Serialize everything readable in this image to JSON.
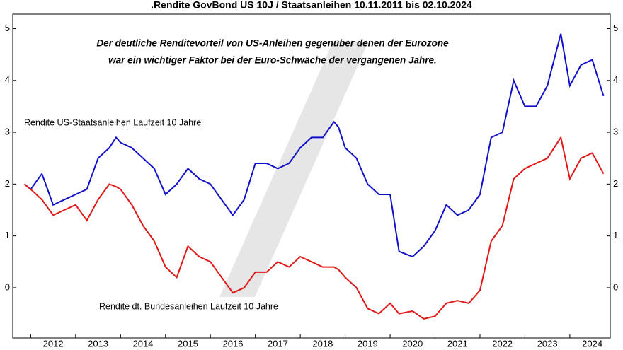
{
  "chart_data": {
    "type": "line",
    "title": ".Rendite GovBond US 10J / Staatsanleihen 10.11.2011 bis 02.10.2024",
    "annotations": [
      "Der deutliche Renditevorteil von US-Anleihen gegenüber denen der Eurozone",
      "war ein wichtiger Faktor bei der Euro-Schwäche der vergangenen Jahre."
    ],
    "x": [
      2011.86,
      2012,
      2012.25,
      2012.5,
      2012.75,
      2013,
      2013.25,
      2013.5,
      2013.75,
      2013.9,
      2014,
      2014.25,
      2014.5,
      2014.75,
      2015,
      2015.25,
      2015.5,
      2015.75,
      2016,
      2016.5,
      2016.75,
      2017,
      2017.25,
      2017.5,
      2017.75,
      2018,
      2018.25,
      2018.5,
      2018.75,
      2018.85,
      2019,
      2019.25,
      2019.5,
      2019.75,
      2020,
      2020.2,
      2020.5,
      2020.75,
      2021,
      2021.25,
      2021.5,
      2021.75,
      2022,
      2022.25,
      2022.5,
      2022.75,
      2023,
      2023.25,
      2023.5,
      2023.8,
      2024,
      2024.25,
      2024.5,
      2024.75
    ],
    "series": [
      {
        "name": "Rendite US-Staatsanleihen Laufzeit 10 Jahre",
        "color": "#1010c8",
        "values": [
          2.0,
          1.9,
          2.2,
          1.6,
          1.7,
          1.8,
          1.9,
          2.5,
          2.7,
          2.9,
          2.8,
          2.7,
          2.5,
          2.3,
          1.8,
          2.0,
          2.3,
          2.1,
          2.0,
          1.4,
          1.7,
          2.4,
          2.4,
          2.3,
          2.4,
          2.7,
          2.9,
          2.9,
          3.2,
          3.1,
          2.7,
          2.5,
          2.0,
          1.8,
          1.8,
          0.7,
          0.6,
          0.8,
          1.1,
          1.6,
          1.4,
          1.5,
          1.8,
          2.9,
          3.0,
          4.0,
          3.5,
          3.5,
          3.9,
          4.9,
          3.9,
          4.3,
          4.4,
          3.7
        ]
      },
      {
        "name": "Rendite dt. Bundesanleihen Laufzeit 10 Jahre",
        "color": "#e01818",
        "values": [
          2.0,
          1.9,
          1.7,
          1.4,
          1.5,
          1.6,
          1.3,
          1.7,
          2.0,
          1.95,
          1.9,
          1.6,
          1.2,
          0.9,
          0.4,
          0.2,
          0.8,
          0.6,
          0.5,
          -0.1,
          0.0,
          0.3,
          0.3,
          0.5,
          0.4,
          0.6,
          0.5,
          0.4,
          0.4,
          0.35,
          0.2,
          0.0,
          -0.4,
          -0.5,
          -0.3,
          -0.5,
          -0.45,
          -0.6,
          -0.55,
          -0.3,
          -0.25,
          -0.3,
          -0.05,
          0.9,
          1.2,
          2.1,
          2.3,
          2.4,
          2.5,
          2.9,
          2.1,
          2.5,
          2.6,
          2.2
        ]
      }
    ],
    "xlim": [
      2011.6,
      2024.9
    ],
    "xticks": [
      2012,
      2013,
      2014,
      2015,
      2016,
      2017,
      2018,
      2019,
      2020,
      2021,
      2022,
      2023,
      2024
    ],
    "ylim": [
      -0.97,
      5.28
    ],
    "yticks": [
      0,
      1,
      2,
      3,
      4,
      5
    ]
  }
}
